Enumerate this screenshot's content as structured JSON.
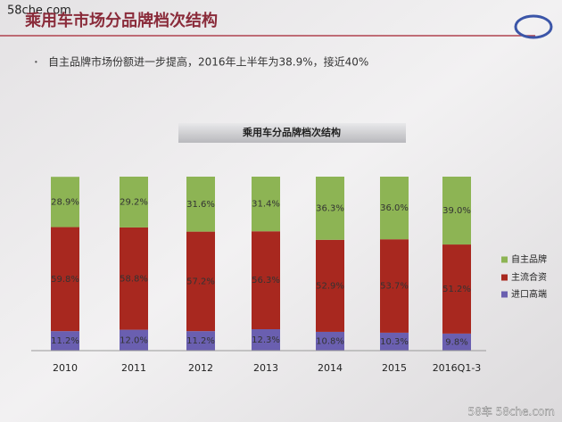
{
  "header": {
    "watermark": "58che.com",
    "title": "乘用车市场分品牌档次结构",
    "bullet": "自主品牌市场份额进一步提高，2016年上半年为38.9%，接近40%"
  },
  "footer": {
    "watermark": "58车 58che.com"
  },
  "chart_data": {
    "type": "stacked-bar",
    "title": "乘用车分品牌档次结构",
    "categories": [
      "2010",
      "2011",
      "2012",
      "2013",
      "2014",
      "2015",
      "2016Q1-3"
    ],
    "ylim": [
      0,
      100
    ],
    "legend": "right",
    "series": [
      {
        "name": "进口高端",
        "color": "#6a5fb0",
        "values": [
          11.2,
          12.0,
          11.2,
          12.3,
          10.8,
          10.3,
          9.8
        ],
        "value_labels": [
          "11.2%",
          "12.0%",
          "11.2%",
          "12.3%",
          "10.8%",
          "10.3%",
          "9.8%"
        ]
      },
      {
        "name": "主流合资",
        "color": "#a8281f",
        "values": [
          59.8,
          58.8,
          57.2,
          56.3,
          52.9,
          53.7,
          51.2
        ],
        "value_labels": [
          "59.8%",
          "58.8%",
          "57.2%",
          "56.3%",
          "52.9%",
          "53.7%",
          "51.2%"
        ]
      },
      {
        "name": "自主品牌",
        "color": "#8db454",
        "values": [
          28.9,
          29.2,
          31.6,
          31.4,
          36.3,
          36.0,
          39.0
        ],
        "value_labels": [
          "28.9%",
          "29.2%",
          "31.6%",
          "31.4%",
          "36.3%",
          "36.0%",
          "39.0%"
        ]
      }
    ]
  }
}
